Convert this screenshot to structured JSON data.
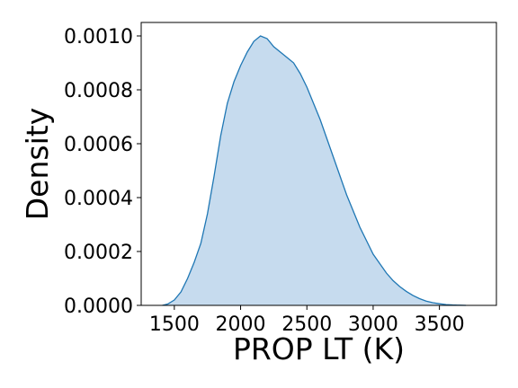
{
  "chart_data": {
    "type": "area",
    "title": "",
    "xlabel": "PROP LT (K)",
    "ylabel": "Density",
    "xlim": [
      1250,
      3930
    ],
    "ylim": [
      0,
      0.00105
    ],
    "x_ticks": [
      1500,
      2000,
      2500,
      3000,
      3500
    ],
    "x_tick_labels": [
      "1500",
      "2000",
      "2500",
      "3000",
      "3500"
    ],
    "y_ticks": [
      0,
      0.0002,
      0.0004,
      0.0006,
      0.0008,
      0.001
    ],
    "y_tick_labels": [
      "0.0000",
      "0.0002",
      "0.0004",
      "0.0006",
      "0.0008",
      "0.0010"
    ],
    "grid": false,
    "series": [
      {
        "fill_color": "#c6dbee",
        "line_color": "#1f77b4",
        "x": [
          1410,
          1450,
          1500,
          1550,
          1600,
          1650,
          1700,
          1750,
          1800,
          1850,
          1900,
          1950,
          2000,
          2050,
          2100,
          2150,
          2200,
          2250,
          2300,
          2350,
          2400,
          2450,
          2500,
          2550,
          2600,
          2650,
          2700,
          2750,
          2800,
          2850,
          2900,
          2950,
          3000,
          3050,
          3100,
          3150,
          3200,
          3250,
          3300,
          3350,
          3400,
          3450,
          3500,
          3550,
          3600,
          3650,
          3700
        ],
        "y": [
          0.0,
          5e-06,
          2e-05,
          5e-05,
          0.0001,
          0.00016,
          0.00023,
          0.00034,
          0.00048,
          0.00063,
          0.00075,
          0.00083,
          0.00089,
          0.00094,
          0.00098,
          0.001,
          0.00099,
          0.00096,
          0.00094,
          0.00092,
          0.0009,
          0.00086,
          0.00081,
          0.00075,
          0.00069,
          0.00062,
          0.00055,
          0.00048,
          0.00041,
          0.00035,
          0.00029,
          0.00024,
          0.00019,
          0.000155,
          0.00012,
          9.2e-05,
          7e-05,
          5.2e-05,
          3.7e-05,
          2.5e-05,
          1.6e-05,
          1e-05,
          6e-06,
          3e-06,
          1.5e-06,
          6e-07,
          0.0
        ]
      }
    ]
  }
}
